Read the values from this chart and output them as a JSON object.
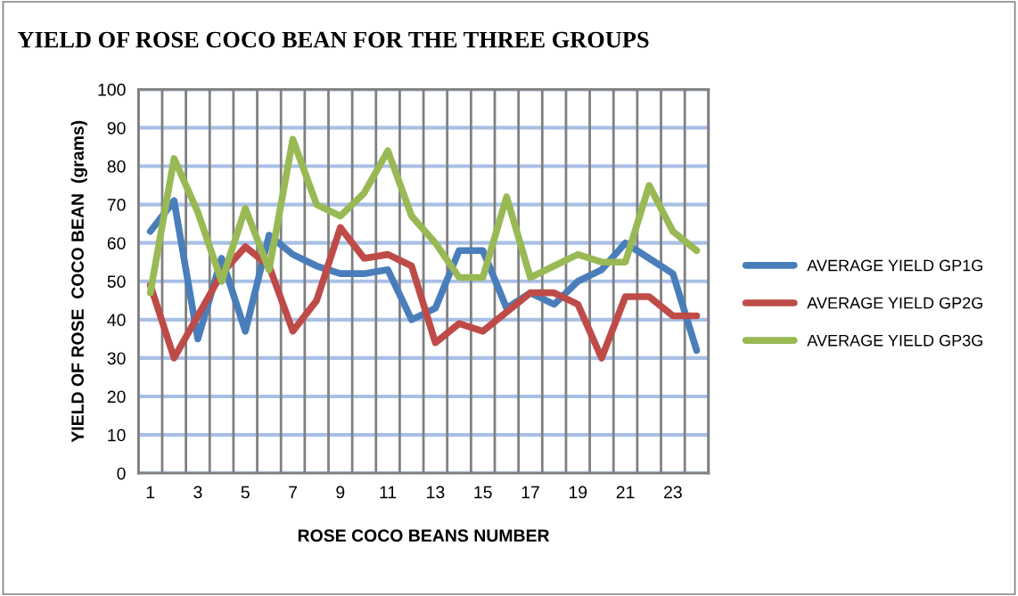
{
  "chart_data": {
    "type": "line",
    "title": "YIELD OF ROSE COCO BEAN FOR THE THREE GROUPS",
    "xlabel": "ROSE COCO BEANS NUMBER",
    "ylabel": "YIELD OF ROSE  COCO BEAN  (grams)",
    "categories": [
      "1",
      null,
      "3",
      null,
      "5",
      null,
      "7",
      null,
      "9",
      null,
      "11",
      null,
      "13",
      null,
      "15",
      null,
      "17",
      null,
      "19",
      null,
      "21",
      null,
      "23",
      null
    ],
    "series": [
      {
        "name": "AVERAGE YIELD GP1G",
        "color": "#4a7ebb",
        "values": [
          63,
          71,
          35,
          56,
          37,
          62,
          57,
          54,
          52,
          52,
          53,
          40,
          43,
          58,
          58,
          43,
          47,
          44,
          50,
          53,
          60,
          56,
          52,
          32
        ]
      },
      {
        "name": "AVERAGE YIELD GP2G",
        "color": "#be4b48",
        "values": [
          49,
          30,
          41,
          52,
          59,
          54,
          37,
          45,
          64,
          56,
          57,
          54,
          34,
          39,
          37,
          42,
          47,
          47,
          44,
          30,
          46,
          46,
          41,
          41
        ]
      },
      {
        "name": "AVERAGE YIELD GP3G",
        "color": "#98b954",
        "values": [
          47,
          82,
          68,
          50,
          69,
          53,
          87,
          70,
          67,
          73,
          84,
          67,
          60,
          51,
          51,
          72,
          51,
          54,
          57,
          55,
          55,
          75,
          63,
          58
        ]
      }
    ],
    "ylim": [
      0,
      100
    ],
    "yticks": [
      0,
      10,
      20,
      30,
      40,
      50,
      60,
      70,
      80,
      90,
      100
    ],
    "grid": true,
    "legend": "right",
    "marker": "none",
    "line_style": "solid"
  }
}
